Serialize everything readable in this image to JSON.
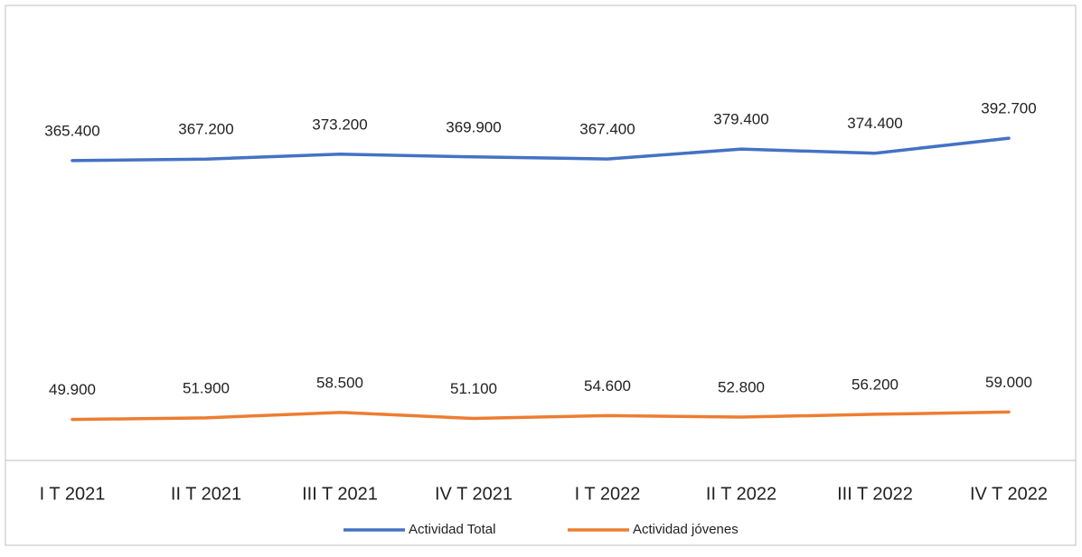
{
  "chart_data": {
    "type": "line",
    "categories": [
      "I T 2021",
      "II T 2021",
      "III T 2021",
      "IV T 2021",
      "I T 2022",
      "II T 2022",
      "III T 2022",
      "IV T 2022"
    ],
    "series": [
      {
        "name": "Actividad Total",
        "color": "#4472c4",
        "values": [
          365400,
          367200,
          373200,
          369900,
          367400,
          379400,
          374400,
          392700
        ],
        "value_labels": [
          "365.400",
          "367.200",
          "373.200",
          "369.900",
          "367.400",
          "379.400",
          "374.400",
          "392.700"
        ]
      },
      {
        "name": "Actividad jóvenes",
        "color": "#ed7d31",
        "values": [
          49900,
          51900,
          58500,
          51100,
          54600,
          52800,
          56200,
          59000
        ],
        "value_labels": [
          "49.900",
          "51.900",
          "58.500",
          "51.100",
          "54.600",
          "52.800",
          "56.200",
          "59.000"
        ]
      }
    ],
    "ylim": [
      0,
      450000
    ]
  }
}
